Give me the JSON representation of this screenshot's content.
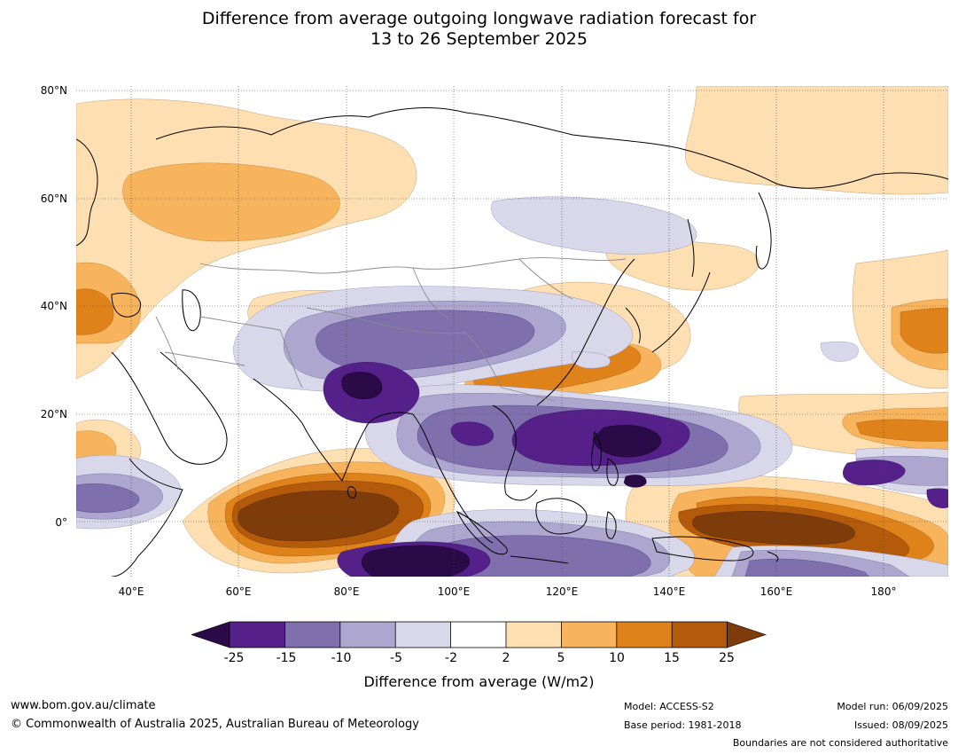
{
  "title": {
    "line1": "Difference from average outgoing longwave radiation forecast for",
    "line2": "13 to 26 September 2025"
  },
  "map": {
    "lat_labels": [
      "80°N",
      "60°N",
      "40°N",
      "20°N",
      "0°"
    ],
    "lon_labels": [
      "40°E",
      "60°E",
      "80°E",
      "100°E",
      "120°E",
      "140°E",
      "160°E",
      "180°"
    ],
    "extent": {
      "lon": [
        30,
        192
      ],
      "lat": [
        -10,
        81
      ]
    }
  },
  "colorbar": {
    "ticks": [
      "-25",
      "-15",
      "-10",
      "-5",
      "-2",
      "2",
      "5",
      "10",
      "15",
      "25"
    ],
    "label": "Difference from average (W/m2)",
    "colors": [
      "#2a0a47",
      "#56208a",
      "#7f70ad",
      "#ada6ce",
      "#d8d8ea",
      "#ffffff",
      "#fedfb2",
      "#f8b45d",
      "#e0821a",
      "#b35b0b",
      "#7f3c0b"
    ]
  },
  "footer": {
    "url": "www.bom.gov.au/climate",
    "copyright": "© Commonwealth of Australia 2025, Australian Bureau of Meteorology",
    "model": "Model: ACCESS-S2",
    "base_period": "Base period: 1981-2018",
    "model_run": "Model run: 06/09/2025",
    "issued": "Issued: 08/09/2025",
    "disclaimer": "Boundaries are not considered authoritative"
  }
}
